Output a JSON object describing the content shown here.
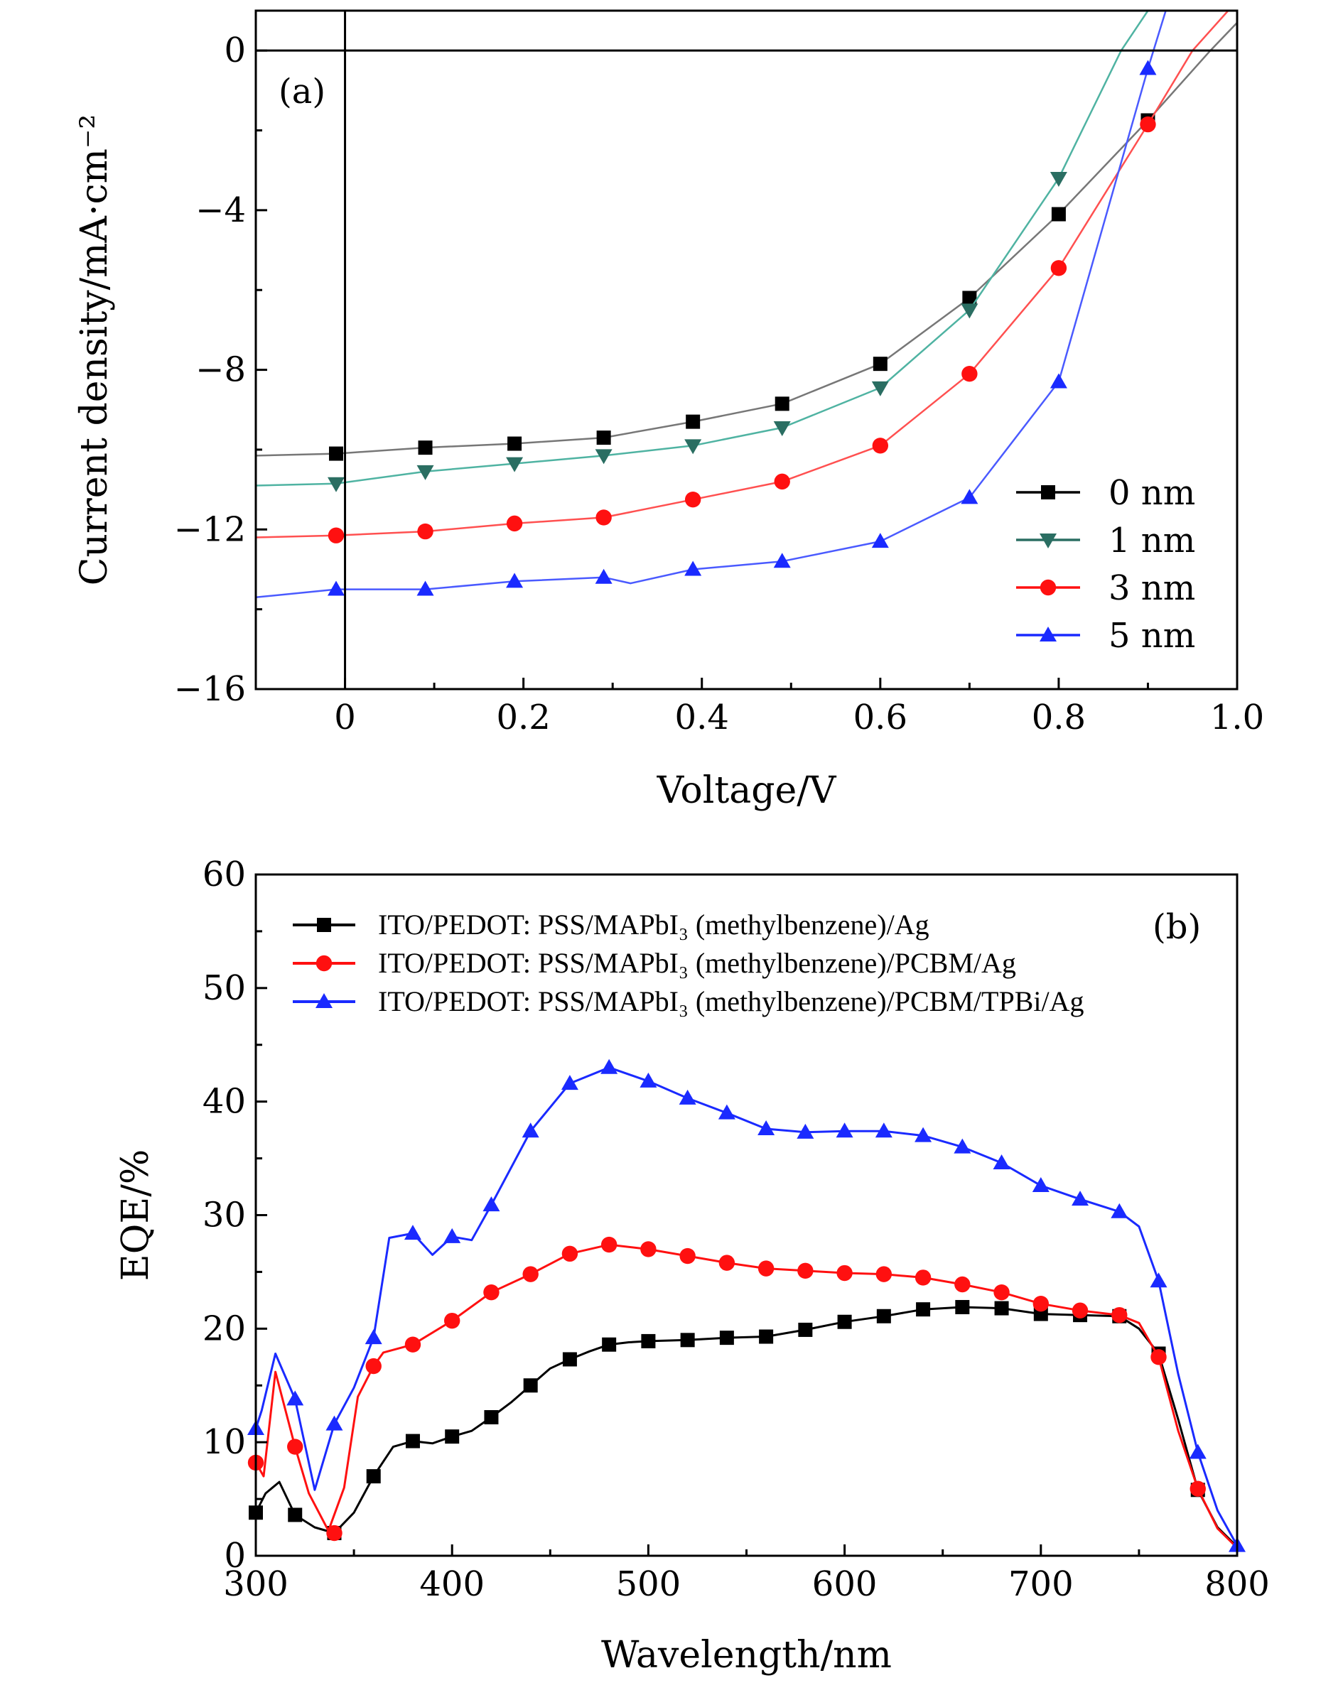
{
  "chart_data": [
    {
      "type": "line",
      "panel_label": "(a)",
      "xlabel": "Voltage/V",
      "ylabel": "Current density/mA·cm⁻²",
      "xlim": [
        -0.1,
        1.0
      ],
      "ylim": [
        -16,
        1
      ],
      "xticks": [
        0,
        0.2,
        0.4,
        0.6,
        0.8,
        1.0
      ],
      "xtick_labels": [
        "0",
        "0.2",
        "0.4",
        "0.6",
        "0.8",
        "1.0"
      ],
      "yticks": [
        0,
        -4,
        -8,
        -12,
        -16
      ],
      "ytick_labels": [
        "0",
        "−4",
        "−8",
        "−12",
        "−16"
      ],
      "grid": false,
      "legend_position": "bottom-right",
      "reference_lines": {
        "x": 0,
        "y": 0
      },
      "series": [
        {
          "name": "0 nm",
          "color": "#000000",
          "line_color": "#777777",
          "marker": "square",
          "x": [
            -0.1,
            -0.01,
            0.09,
            0.19,
            0.29,
            0.39,
            0.49,
            0.6,
            0.7,
            0.8,
            0.9,
            0.97,
            1.0
          ],
          "y": [
            -10.15,
            -10.1,
            -9.95,
            -9.85,
            -9.7,
            -9.3,
            -8.85,
            -7.85,
            -6.2,
            -4.1,
            -1.75,
            0,
            0.7
          ],
          "marker_x": [
            -0.01,
            0.09,
            0.19,
            0.29,
            0.39,
            0.49,
            0.6,
            0.7,
            0.8,
            0.9
          ],
          "marker_y": [
            -10.1,
            -9.95,
            -9.85,
            -9.7,
            -9.3,
            -8.85,
            -7.85,
            -6.2,
            -4.1,
            -1.75
          ]
        },
        {
          "name": "1 nm",
          "color": "#2a6e62",
          "line_color": "#4fb3a2",
          "marker": "triangle-down",
          "x": [
            -0.1,
            -0.01,
            0.09,
            0.19,
            0.29,
            0.39,
            0.49,
            0.6,
            0.7,
            0.8,
            0.87,
            0.9
          ],
          "y": [
            -10.9,
            -10.85,
            -10.55,
            -10.35,
            -10.15,
            -9.9,
            -9.45,
            -8.45,
            -6.5,
            -3.2,
            0,
            1.0
          ],
          "marker_x": [
            -0.01,
            0.09,
            0.19,
            0.29,
            0.39,
            0.49,
            0.6,
            0.7,
            0.8
          ],
          "marker_y": [
            -10.85,
            -10.55,
            -10.35,
            -10.15,
            -9.9,
            -9.45,
            -8.45,
            -6.5,
            -3.2
          ]
        },
        {
          "name": "3 nm",
          "color": "#ff1010",
          "line_color": "#ff5050",
          "marker": "circle",
          "x": [
            -0.1,
            -0.01,
            0.09,
            0.19,
            0.29,
            0.39,
            0.49,
            0.6,
            0.7,
            0.8,
            0.9,
            0.95,
            0.99
          ],
          "y": [
            -12.2,
            -12.15,
            -12.05,
            -11.85,
            -11.7,
            -11.25,
            -10.8,
            -9.9,
            -8.1,
            -5.45,
            -1.85,
            0,
            1.0
          ],
          "marker_x": [
            -0.01,
            0.09,
            0.19,
            0.29,
            0.39,
            0.49,
            0.6,
            0.7,
            0.8,
            0.9
          ],
          "marker_y": [
            -12.15,
            -12.05,
            -11.85,
            -11.7,
            -11.25,
            -10.8,
            -9.9,
            -8.1,
            -5.45,
            -1.85
          ]
        },
        {
          "name": "5 nm",
          "color": "#1a2aff",
          "line_color": "#4a5aff",
          "marker": "triangle-up",
          "x": [
            -0.1,
            -0.01,
            0.09,
            0.19,
            0.29,
            0.32,
            0.39,
            0.49,
            0.6,
            0.7,
            0.8,
            0.9,
            0.92
          ],
          "y": [
            -13.7,
            -13.5,
            -13.5,
            -13.3,
            -13.2,
            -13.35,
            -13.0,
            -12.8,
            -12.3,
            -11.2,
            -8.3,
            -0.45,
            1.0
          ],
          "marker_x": [
            -0.01,
            0.09,
            0.19,
            0.29,
            0.39,
            0.49,
            0.6,
            0.7,
            0.8,
            0.9
          ],
          "marker_y": [
            -13.5,
            -13.5,
            -13.3,
            -13.2,
            -13.0,
            -12.8,
            -12.3,
            -11.2,
            -8.3,
            -0.45
          ]
        }
      ]
    },
    {
      "type": "line",
      "panel_label": "(b)",
      "xlabel": "Wavelength/nm",
      "ylabel": "EQE/%",
      "xlim": [
        300,
        800
      ],
      "ylim": [
        0,
        60
      ],
      "xticks": [
        300,
        400,
        500,
        600,
        700,
        800
      ],
      "xtick_labels": [
        "300",
        "400",
        "500",
        "600",
        "700",
        "800"
      ],
      "yticks": [
        0,
        10,
        20,
        30,
        40,
        50,
        60
      ],
      "ytick_labels": [
        "0",
        "10",
        "20",
        "30",
        "40",
        "50",
        "60"
      ],
      "grid": false,
      "legend_position": "top-left",
      "series": [
        {
          "name": "ITO/PEDOT: PSS/MAPbI₃ (methylbenzene)/Ag",
          "color": "#000000",
          "line_color": "#000000",
          "marker": "square",
          "x": [
            300,
            305,
            312,
            320,
            330,
            340,
            350,
            360,
            370,
            380,
            390,
            400,
            410,
            420,
            430,
            440,
            450,
            460,
            470,
            480,
            490,
            500,
            520,
            540,
            560,
            580,
            600,
            620,
            640,
            660,
            680,
            700,
            720,
            740,
            750,
            760,
            770,
            780,
            790,
            800
          ],
          "y": [
            3.8,
            5.5,
            6.5,
            3.6,
            2.5,
            2.0,
            3.8,
            7.0,
            9.6,
            10.1,
            9.9,
            10.5,
            11.0,
            12.2,
            13.5,
            15.0,
            16.5,
            17.3,
            18.0,
            18.6,
            18.8,
            18.9,
            19.0,
            19.2,
            19.3,
            19.9,
            20.6,
            21.1,
            21.7,
            21.9,
            21.8,
            21.3,
            21.2,
            21.1,
            20.0,
            17.8,
            12.0,
            5.8,
            2.5,
            0.8
          ],
          "marker_x": [
            300,
            320,
            340,
            360,
            380,
            400,
            420,
            440,
            460,
            480,
            500,
            520,
            540,
            560,
            580,
            600,
            620,
            640,
            660,
            680,
            700,
            720,
            740,
            760,
            780
          ],
          "marker_y": [
            3.8,
            3.6,
            2.0,
            7.0,
            10.1,
            10.5,
            12.2,
            15.0,
            17.3,
            18.6,
            18.9,
            19.0,
            19.2,
            19.3,
            19.9,
            20.6,
            21.1,
            21.7,
            21.9,
            21.8,
            21.3,
            21.2,
            21.1,
            17.8,
            5.8
          ]
        },
        {
          "name": "ITO/PEDOT: PSS/MAPbI₃ (methylbenzene)/PCBM/Ag",
          "color": "#ff1010",
          "line_color": "#ff1010",
          "marker": "circle",
          "x": [
            300,
            304,
            310,
            320,
            327,
            337,
            345,
            352,
            360,
            365,
            380,
            400,
            420,
            440,
            460,
            480,
            500,
            520,
            540,
            560,
            580,
            600,
            620,
            640,
            660,
            680,
            700,
            720,
            740,
            750,
            760,
            770,
            780,
            790,
            800
          ],
          "y": [
            8.2,
            7.0,
            16.2,
            9.6,
            5.5,
            2.2,
            6.0,
            14.0,
            16.7,
            17.9,
            18.6,
            20.7,
            23.2,
            24.8,
            26.6,
            27.4,
            27.0,
            26.4,
            25.8,
            25.3,
            25.1,
            24.9,
            24.8,
            24.5,
            23.9,
            23.2,
            22.2,
            21.6,
            21.2,
            20.5,
            17.5,
            11.0,
            5.9,
            2.4,
            0.7
          ],
          "marker_x": [
            300,
            320,
            340,
            360,
            380,
            400,
            420,
            440,
            460,
            480,
            500,
            520,
            540,
            560,
            580,
            600,
            620,
            640,
            660,
            680,
            700,
            720,
            740,
            760,
            780
          ],
          "marker_y": [
            8.2,
            9.6,
            2.0,
            16.7,
            18.6,
            20.7,
            23.2,
            24.8,
            26.6,
            27.4,
            27.0,
            26.4,
            25.8,
            25.3,
            25.1,
            24.9,
            24.8,
            24.5,
            23.9,
            23.2,
            22.2,
            21.6,
            21.2,
            17.5,
            5.9
          ]
        },
        {
          "name": "ITO/PEDOT: PSS/MAPbI₃ (methylbenzene)/PCBM/TPBi/Ag",
          "color": "#1a2aff",
          "line_color": "#1a2aff",
          "marker": "triangle-up",
          "x": [
            300,
            303,
            310,
            320,
            330,
            340,
            350,
            360,
            368,
            380,
            390,
            400,
            410,
            420,
            440,
            460,
            480,
            500,
            520,
            540,
            560,
            580,
            600,
            620,
            640,
            660,
            680,
            700,
            720,
            740,
            750,
            760,
            770,
            780,
            790,
            800
          ],
          "y": [
            11.2,
            12.8,
            17.8,
            13.8,
            5.8,
            11.6,
            14.8,
            19.2,
            28.0,
            28.4,
            26.5,
            28.1,
            27.8,
            30.9,
            37.4,
            41.6,
            43.0,
            41.8,
            40.3,
            39.0,
            37.6,
            37.3,
            37.4,
            37.4,
            37.0,
            36.0,
            34.6,
            32.6,
            31.4,
            30.3,
            29.0,
            24.2,
            16.0,
            9.1,
            4.0,
            0.9
          ],
          "marker_x": [
            300,
            320,
            340,
            360,
            380,
            400,
            420,
            440,
            460,
            480,
            500,
            520,
            540,
            560,
            580,
            600,
            620,
            640,
            660,
            680,
            700,
            720,
            740,
            760,
            780,
            800
          ],
          "marker_y": [
            11.2,
            13.8,
            11.6,
            19.2,
            28.4,
            28.1,
            30.9,
            37.4,
            41.6,
            43.0,
            41.8,
            40.3,
            39.0,
            37.6,
            37.3,
            37.4,
            37.4,
            37.0,
            36.0,
            34.6,
            32.6,
            31.4,
            30.3,
            24.2,
            9.1,
            0.9
          ]
        }
      ]
    }
  ]
}
